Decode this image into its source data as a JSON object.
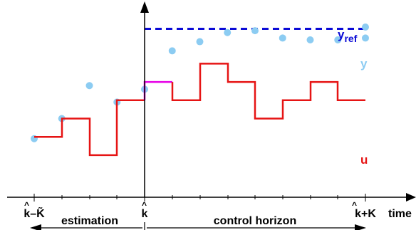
{
  "diagram": {
    "labels": {
      "yref": "y",
      "yref_sub": "ref",
      "y": "y",
      "u": "u",
      "time": "time",
      "k_minus": "k–K̃",
      "k_hat": "k",
      "k_plus": "k+K",
      "estimation": "estimation",
      "control_horizon": "control horizon"
    },
    "colors": {
      "yref": "#0b0bd6",
      "y": "#8cccf2",
      "u": "#e61414",
      "u_transition": "#e600e6",
      "axis": "#000000"
    },
    "series": {
      "y_points": [
        0.32,
        0.43,
        0.61,
        0.52,
        0.59,
        0.8,
        0.85,
        0.9,
        0.91,
        0.87,
        0.86,
        0.86,
        0.87,
        0.93
      ],
      "yref_level": 0.92,
      "u_steps": [
        0.33,
        0.43,
        0.23,
        0.53,
        0.63,
        0.53,
        0.73,
        0.63,
        0.43,
        0.53,
        0.63,
        0.53
      ]
    }
  }
}
